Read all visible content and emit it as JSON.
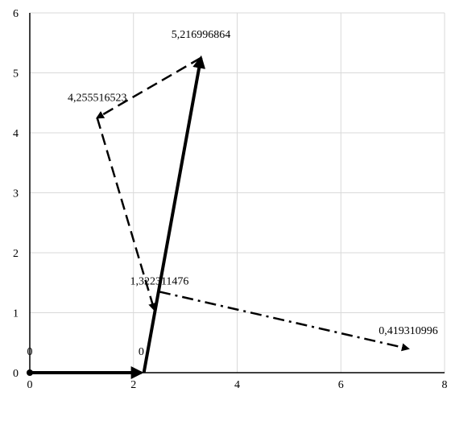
{
  "chart_data": {
    "type": "scatter",
    "title": "",
    "xlabel": "",
    "ylabel": "",
    "xlim": [
      0,
      8
    ],
    "ylim": [
      0,
      6
    ],
    "x_ticks": [
      "0",
      "2",
      "4",
      "6",
      "8"
    ],
    "y_ticks": [
      "0",
      "1",
      "2",
      "3",
      "4",
      "5",
      "6"
    ],
    "grid": true,
    "legend": "none",
    "colors": {
      "grid": "#d9d9d9",
      "axis": "#000000",
      "series": "#000000"
    },
    "series": [
      {
        "style": "solid",
        "arrow": true,
        "points": [
          [
            0,
            0
          ],
          [
            2.15,
            0
          ]
        ]
      },
      {
        "style": "solid",
        "arrow": true,
        "points": [
          [
            2.2,
            0
          ],
          [
            3.3,
            5.25
          ]
        ]
      },
      {
        "style": "dashed",
        "arrow": true,
        "points": [
          [
            3.3,
            5.25
          ],
          [
            1.3,
            4.25
          ]
        ]
      },
      {
        "style": "dashed",
        "arrow": true,
        "points": [
          [
            1.3,
            4.25
          ],
          [
            2.4,
            1.05
          ]
        ]
      },
      {
        "style": "dashdot",
        "arrow": true,
        "points": [
          [
            2.5,
            1.35
          ],
          [
            7.3,
            0.4
          ]
        ]
      }
    ],
    "data_labels": [
      {
        "text": "0",
        "x": 0,
        "y": 0
      },
      {
        "text": "0",
        "x": 2.15,
        "y": 0
      },
      {
        "text": "5,216996864",
        "x": 3.3,
        "y": 5.25
      },
      {
        "text": "4,255516523",
        "x": 1.3,
        "y": 4.25
      },
      {
        "text": "1,322311476",
        "x": 2.5,
        "y": 1.35
      },
      {
        "text": "0,419310996",
        "x": 7.3,
        "y": 0.4
      }
    ]
  }
}
